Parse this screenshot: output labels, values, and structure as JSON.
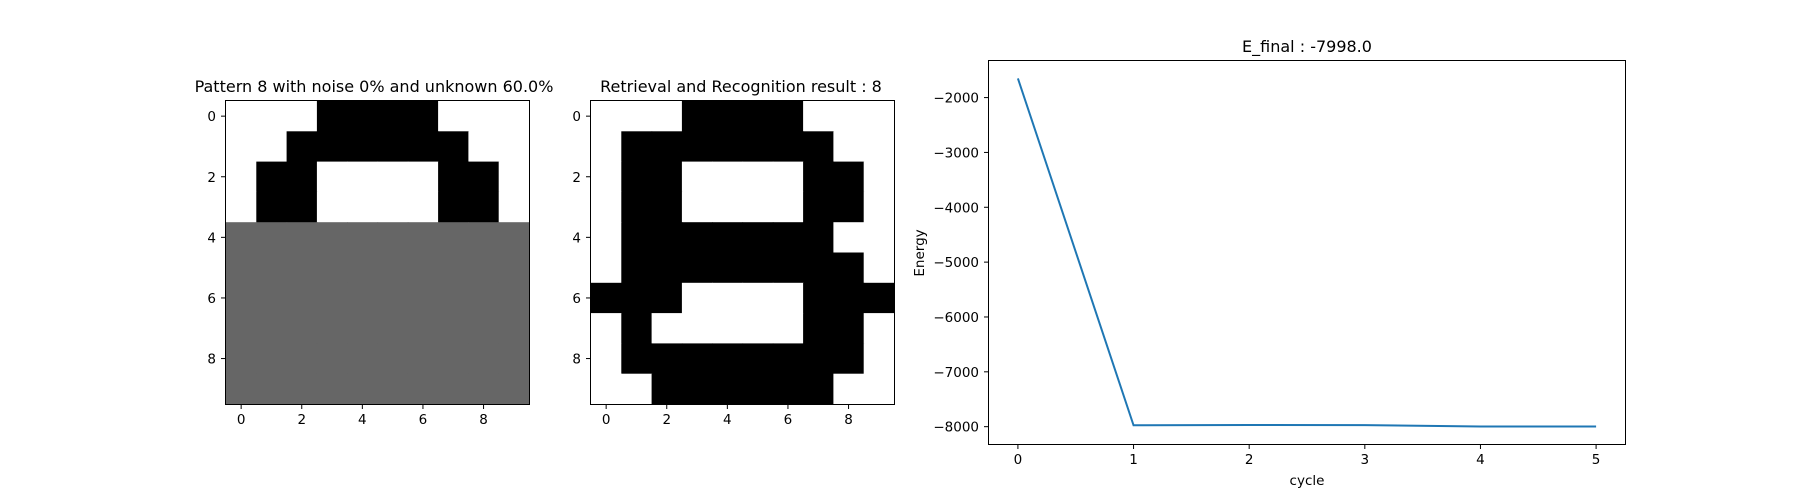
{
  "chart_data": [
    {
      "type": "heatmap",
      "title": "Pattern 8 with noise 0% and unknown 60.0%",
      "colors": {
        "1": "#000000",
        "0": "#ffffff",
        "-1": "#666666"
      },
      "xticks": [
        "0",
        "2",
        "4",
        "6",
        "8"
      ],
      "yticks": [
        "0",
        "2",
        "4",
        "6",
        "8"
      ],
      "grid": [
        [
          0,
          0,
          0,
          1,
          1,
          1,
          1,
          0,
          0,
          0
        ],
        [
          0,
          0,
          1,
          1,
          1,
          1,
          1,
          1,
          0,
          0
        ],
        [
          0,
          1,
          1,
          0,
          0,
          0,
          0,
          1,
          1,
          0
        ],
        [
          0,
          1,
          1,
          0,
          0,
          0,
          0,
          1,
          1,
          0
        ],
        [
          -1,
          -1,
          -1,
          -1,
          -1,
          -1,
          -1,
          -1,
          -1,
          -1
        ],
        [
          -1,
          -1,
          -1,
          -1,
          -1,
          -1,
          -1,
          -1,
          -1,
          -1
        ],
        [
          -1,
          -1,
          -1,
          -1,
          -1,
          -1,
          -1,
          -1,
          -1,
          -1
        ],
        [
          -1,
          -1,
          -1,
          -1,
          -1,
          -1,
          -1,
          -1,
          -1,
          -1
        ],
        [
          -1,
          -1,
          -1,
          -1,
          -1,
          -1,
          -1,
          -1,
          -1,
          -1
        ],
        [
          -1,
          -1,
          -1,
          -1,
          -1,
          -1,
          -1,
          -1,
          -1,
          -1
        ]
      ]
    },
    {
      "type": "heatmap",
      "title": "Retrieval and Recognition result : 8",
      "colors": {
        "1": "#000000",
        "0": "#ffffff",
        "-1": "#666666"
      },
      "xticks": [
        "0",
        "2",
        "4",
        "6",
        "8"
      ],
      "yticks": [
        "0",
        "2",
        "4",
        "6",
        "8"
      ],
      "grid": [
        [
          0,
          0,
          0,
          1,
          1,
          1,
          1,
          0,
          0,
          0
        ],
        [
          0,
          1,
          1,
          1,
          1,
          1,
          1,
          1,
          0,
          0
        ],
        [
          0,
          1,
          1,
          0,
          0,
          0,
          0,
          1,
          1,
          0
        ],
        [
          0,
          1,
          1,
          0,
          0,
          0,
          0,
          1,
          1,
          0
        ],
        [
          0,
          1,
          1,
          1,
          1,
          1,
          1,
          1,
          0,
          0
        ],
        [
          0,
          1,
          1,
          1,
          1,
          1,
          1,
          1,
          1,
          0
        ],
        [
          1,
          1,
          1,
          0,
          0,
          0,
          0,
          1,
          1,
          1
        ],
        [
          0,
          1,
          0,
          0,
          0,
          0,
          0,
          1,
          1,
          0
        ],
        [
          0,
          1,
          1,
          1,
          1,
          1,
          1,
          1,
          1,
          0
        ],
        [
          0,
          0,
          1,
          1,
          1,
          1,
          1,
          1,
          0,
          0
        ]
      ]
    },
    {
      "type": "line",
      "title": "E_final : -7998.0",
      "xlabel": "cycle",
      "ylabel": "Energy",
      "x": [
        0,
        1,
        2,
        3,
        4,
        5
      ],
      "y": [
        -1650,
        -7975,
        -7970,
        -7972,
        -7998,
        -7998
      ],
      "xlim": [
        -0.25,
        5.25
      ],
      "ylim": [
        -8316,
        -1333
      ],
      "xticks": [
        0,
        1,
        2,
        3,
        4,
        5
      ],
      "yticks": [
        -2000,
        -3000,
        -4000,
        -5000,
        -6000,
        -7000,
        -8000
      ],
      "line_color": "#1f77b4",
      "grid": false
    }
  ]
}
